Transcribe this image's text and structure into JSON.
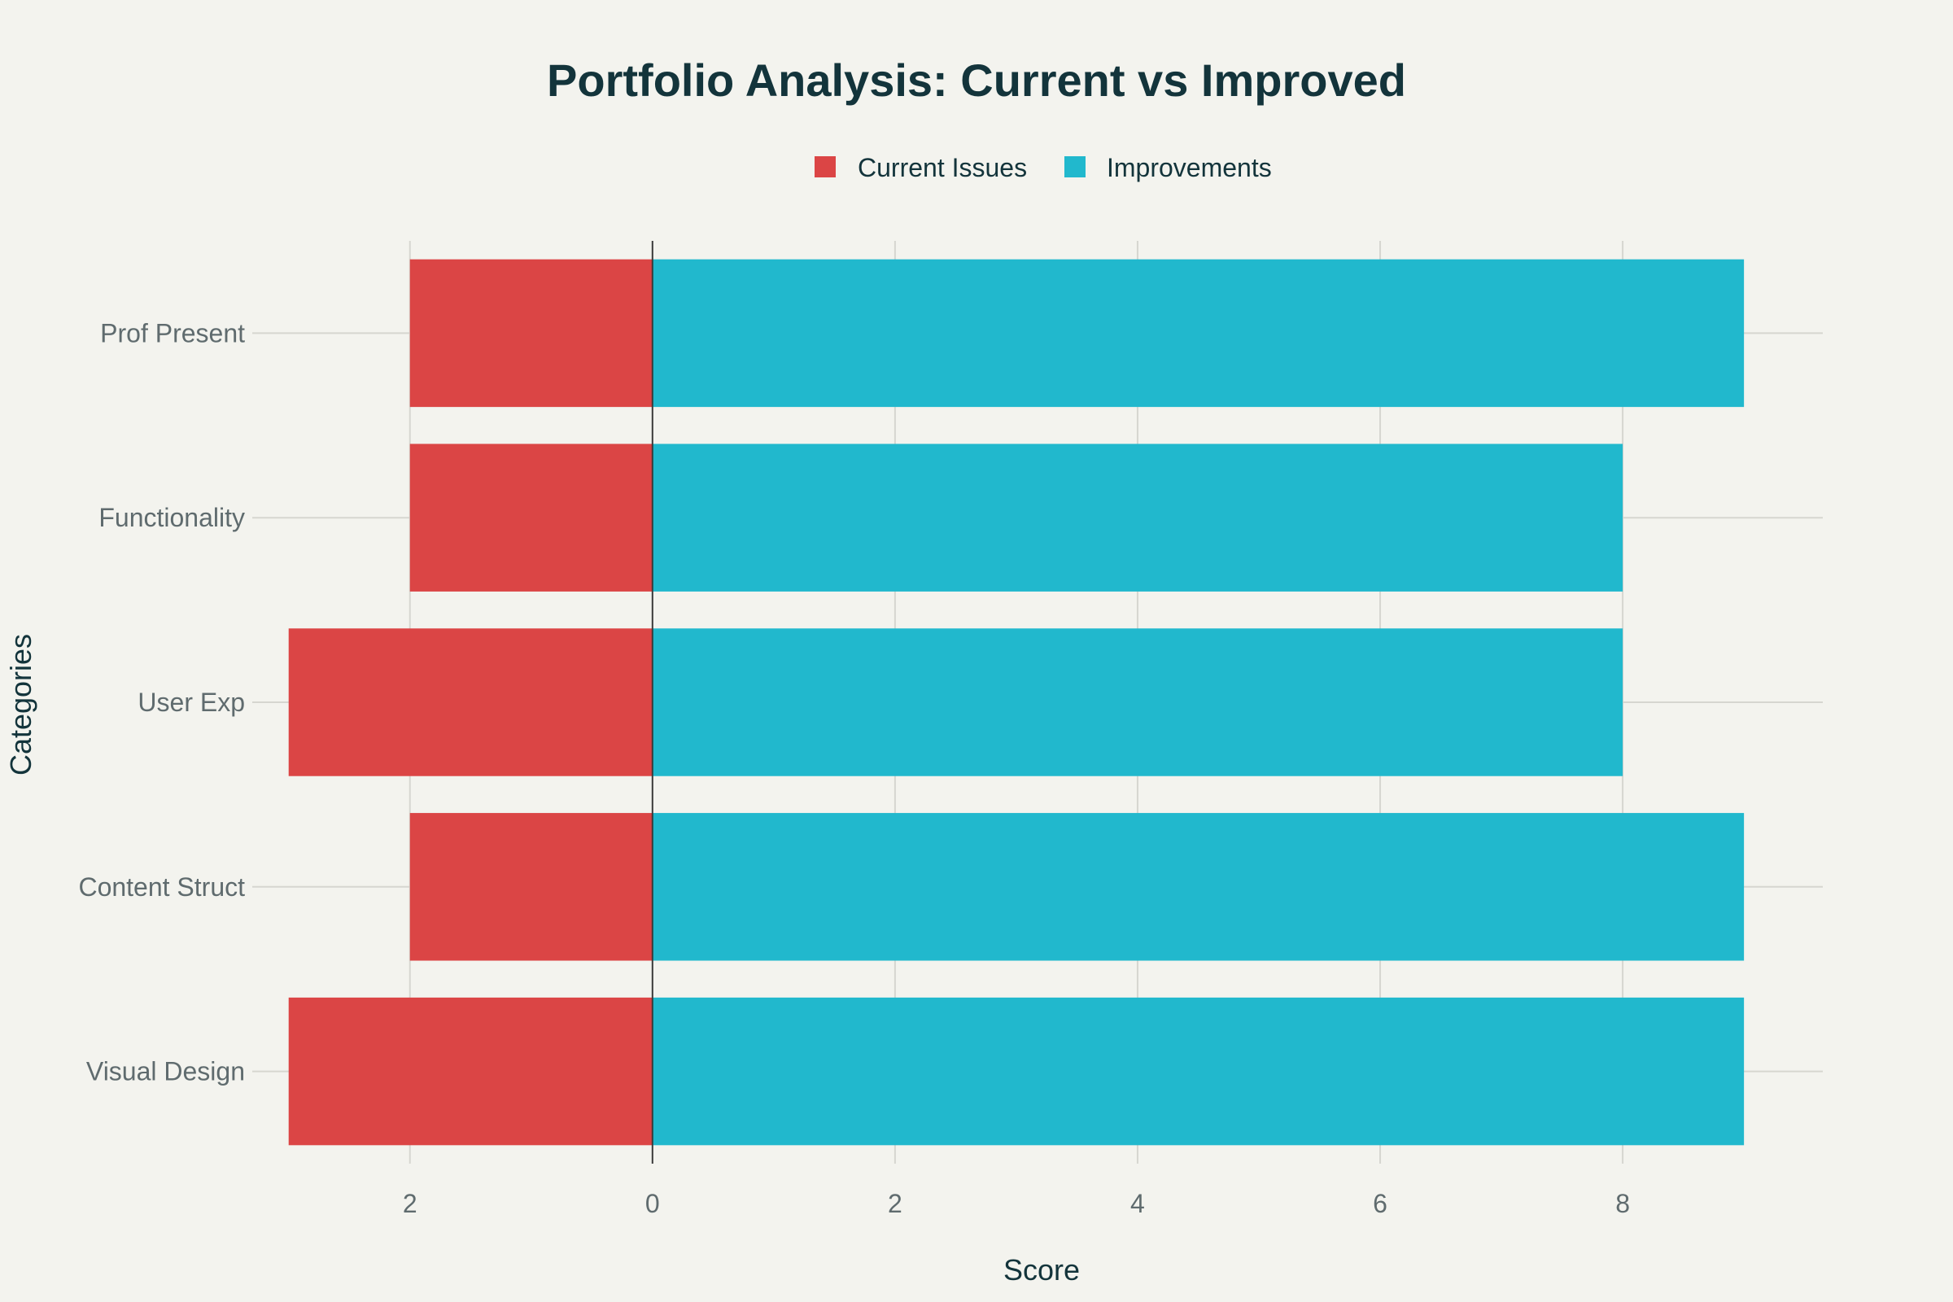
{
  "chart_data": {
    "type": "bar",
    "orientation": "horizontal",
    "title": "Portfolio Analysis: Current vs Improved",
    "xlabel": "Score",
    "ylabel": "Categories",
    "categories": [
      "Visual Design",
      "Content Struct",
      "User Exp",
      "Functionality",
      "Prof Present"
    ],
    "series": [
      {
        "name": "Current Issues",
        "values": [
          -3,
          -2,
          -3,
          -2,
          -2
        ],
        "color": "#db4545"
      },
      {
        "name": "Improvements",
        "values": [
          9,
          9,
          8,
          8,
          9
        ],
        "color": "#21b8cd"
      }
    ],
    "xlim": [
      -3.3,
      9.65
    ],
    "x_ticks": [
      -2,
      0,
      2,
      4,
      6,
      8
    ],
    "x_tick_labels": [
      "2",
      "0",
      "2",
      "4",
      "6",
      "8"
    ],
    "grid": true,
    "legend_position": "top-center",
    "barmode": "relative"
  }
}
